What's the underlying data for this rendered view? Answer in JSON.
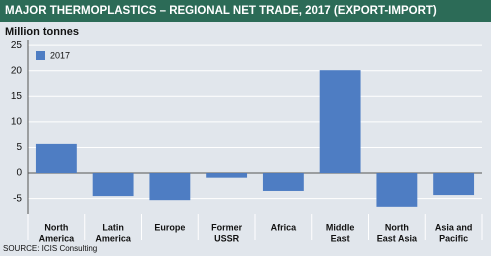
{
  "chart_data": {
    "type": "bar",
    "title": "MAJOR THERMOPLASTICS – REGIONAL NET TRADE, 2017 (EXPORT-IMPORT)",
    "y_label": "Million tonnes",
    "source": "SOURCE: ICIS Consulting",
    "categories": [
      [
        "North",
        "America"
      ],
      [
        "Latin",
        "America"
      ],
      [
        "Europe"
      ],
      [
        "Former",
        "USSR"
      ],
      [
        "Africa"
      ],
      [
        "Middle",
        "East"
      ],
      [
        "North",
        "East Asia"
      ],
      [
        "Asia and",
        "Pacific"
      ]
    ],
    "series": [
      {
        "name": "2017",
        "color": "#4e7dc3",
        "values": [
          5.7,
          -4.5,
          -5.3,
          -0.9,
          -3.5,
          20.1,
          -6.6,
          -4.3
        ]
      }
    ],
    "ylim": [
      -8,
      26
    ],
    "yticks": [
      -5,
      0,
      5,
      10,
      15,
      20,
      25
    ],
    "grid": true,
    "legend": "top-left"
  }
}
